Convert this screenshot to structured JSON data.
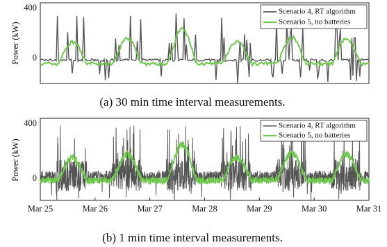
{
  "chart_data": [
    {
      "type": "line",
      "caption": "(a) 30 min time interval measurements.",
      "ylabel": "Power (kW)",
      "yticks": [
        0,
        400
      ],
      "ylim": [
        -190,
        465
      ],
      "xlim": [
        0,
        6
      ],
      "xticks": [],
      "grid": false,
      "legend": "top-right",
      "series": [
        {
          "name": "Scenario 4, RT algorithm",
          "color": "#555555"
        },
        {
          "name": "Scenario 5, no batteries",
          "color": "#6cc94a"
        }
      ]
    },
    {
      "type": "line",
      "caption": "(b) 1 min time interval measurements.",
      "ylabel": "Power (kW)",
      "yticks": [
        0,
        400
      ],
      "ylim": [
        -190,
        465
      ],
      "xlim": [
        0,
        6
      ],
      "xticks": [
        "Mar 25",
        "Mar 26",
        "Mar 27",
        "Mar 28",
        "Mar 29",
        "Mar 30",
        "Mar 31"
      ],
      "grid": false,
      "legend": "top-right",
      "series": [
        {
          "name": "Scenario 4, RT algorithm",
          "color": "#555555"
        },
        {
          "name": "Scenario 5, no batteries",
          "color": "#6cc94a"
        }
      ]
    }
  ]
}
